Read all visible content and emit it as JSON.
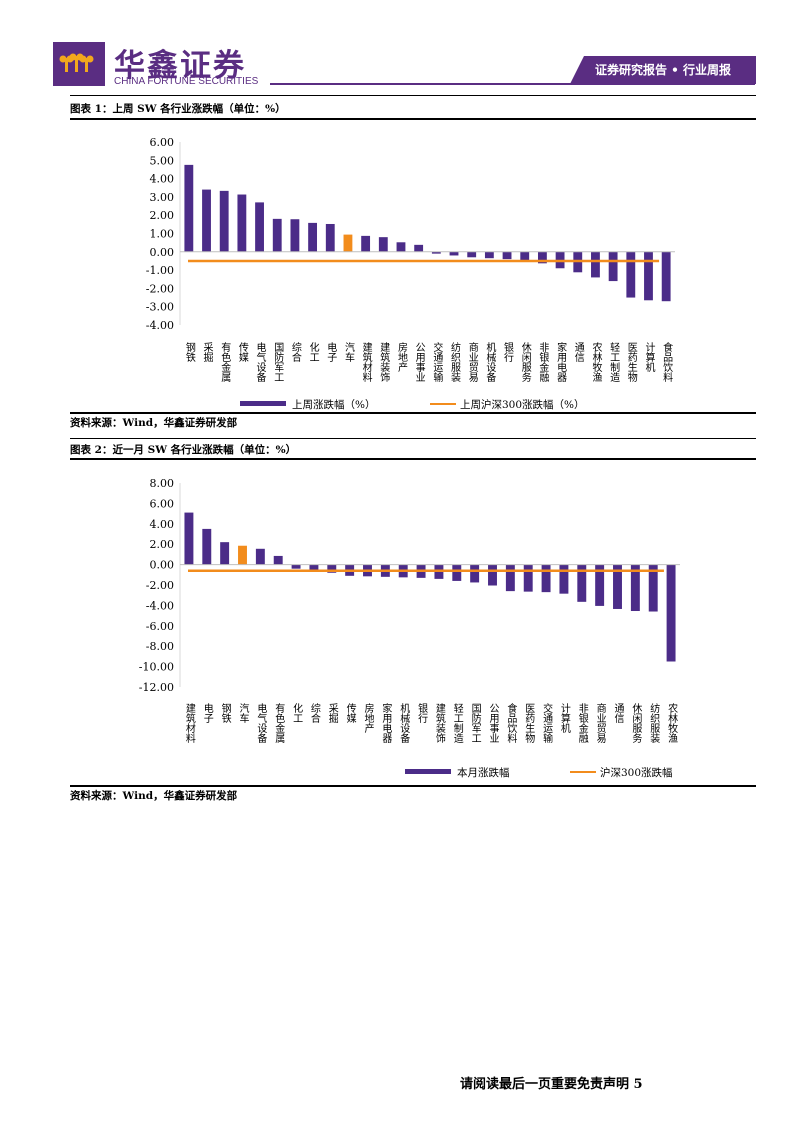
{
  "header": {
    "company_cn": "华鑫证券",
    "company_en": "CHINA FORTUNE SECURITIES",
    "report_tag": "证券研究报告 • 行业周报",
    "brand_color": "#5a2d82"
  },
  "figure1": {
    "title": "图表 1：上周 SW 各行业涨跌幅（单位：%）",
    "source": "资料来源：Wind，华鑫证券研发部"
  },
  "figure2": {
    "title": "图表 2：近一月 SW 各行业涨跌幅（单位：%）",
    "source": "资料来源：Wind，华鑫证券研发部"
  },
  "footer": {
    "note": "请阅读最后一页重要免责声明 5"
  },
  "chart_data": [
    {
      "type": "bar",
      "title": "上周 SW 各行业涨跌幅（单位：%）",
      "categories": [
        "钢铁",
        "采掘",
        "有色金属",
        "传媒",
        "电气设备",
        "国防军工",
        "综合",
        "化工",
        "电子",
        "汽车",
        "建筑材料",
        "建筑装饰",
        "房地产",
        "公用事业",
        "交通运输",
        "纺织服装",
        "商业贸易",
        "机械设备",
        "银行",
        "休闲服务",
        "非银金融",
        "家用电器",
        "通信",
        "农林牧渔",
        "轻工制造",
        "医药生物",
        "计算机",
        "食品饮料"
      ],
      "values": [
        4.75,
        3.4,
        3.33,
        3.13,
        2.7,
        1.8,
        1.78,
        1.58,
        1.52,
        0.94,
        0.87,
        0.8,
        0.52,
        0.38,
        -0.1,
        -0.2,
        -0.3,
        -0.35,
        -0.4,
        -0.5,
        -0.63,
        -0.9,
        -1.12,
        -1.4,
        -1.6,
        -2.5,
        -2.65,
        -2.7
      ],
      "highlight": "汽车",
      "reference_value": -0.5,
      "ylim": [
        -4,
        6
      ],
      "yticks": [
        "6.00",
        "5.00",
        "4.00",
        "3.00",
        "2.00",
        "1.00",
        "0.00",
        "-1.00",
        "-2.00",
        "-3.00",
        "-4.00"
      ],
      "legend": [
        "上周涨跌幅（%）",
        "上周沪深300涨跌幅（%）"
      ],
      "bar_color": "#4b2c88",
      "highlight_color": "#f28c1c",
      "line_color": "#f28c1c"
    },
    {
      "type": "bar",
      "title": "近一月 SW 各行业涨跌幅（单位：%）",
      "categories": [
        "建筑材料",
        "电子",
        "钢铁",
        "汽车",
        "电气设备",
        "有色金属",
        "化工",
        "综合",
        "采掘",
        "传媒",
        "房地产",
        "家用电器",
        "机械设备",
        "银行",
        "建筑装饰",
        "轻工制造",
        "国防军工",
        "公用事业",
        "食品饮料",
        "医药生物",
        "交通运输",
        "计算机",
        "非银金融",
        "商业贸易",
        "通信",
        "休闲服务",
        "纺织服装",
        "农林牧渔"
      ],
      "values": [
        5.1,
        3.5,
        2.2,
        1.85,
        1.55,
        0.85,
        -0.4,
        -0.65,
        -0.8,
        -1.1,
        -1.15,
        -1.2,
        -1.25,
        -1.3,
        -1.4,
        -1.6,
        -1.75,
        -2.05,
        -2.6,
        -2.65,
        -2.7,
        -2.85,
        -3.65,
        -4.05,
        -4.35,
        -4.55,
        -4.6,
        -9.5
      ],
      "highlight": "汽车",
      "reference_value": -0.6,
      "ylim": [
        -12,
        8
      ],
      "yticks": [
        "8.00",
        "6.00",
        "4.00",
        "2.00",
        "0.00",
        "-2.00",
        "-4.00",
        "-6.00",
        "-8.00",
        "-10.00",
        "-12.00"
      ],
      "legend": [
        "本月涨跌幅",
        "沪深300涨跌幅"
      ],
      "bar_color": "#4b2c88",
      "highlight_color": "#f28c1c",
      "line_color": "#f28c1c"
    }
  ]
}
